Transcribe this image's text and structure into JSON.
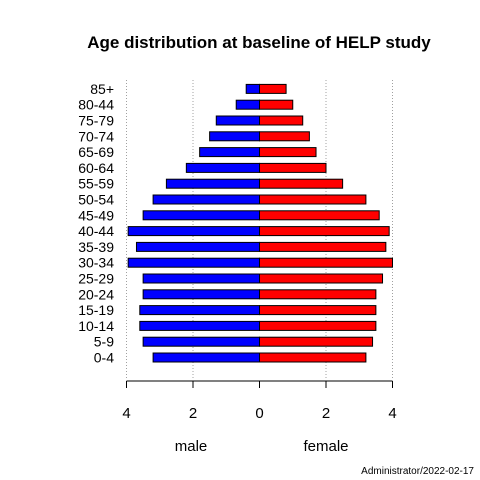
{
  "chart_data": {
    "type": "bar",
    "orientation": "horizontal",
    "layout": "population-pyramid",
    "title": "Age distribution at baseline of HELP study",
    "categories": [
      "0-4",
      "5-9",
      "10-14",
      "15-19",
      "20-24",
      "25-29",
      "30-34",
      "35-39",
      "40-44",
      "45-49",
      "50-54",
      "55-59",
      "60-64",
      "65-69",
      "70-74",
      "75-79",
      "80-44",
      "85+"
    ],
    "series": [
      {
        "name": "male",
        "side": "left",
        "color": "#0000ff",
        "values": [
          3.2,
          3.5,
          3.6,
          3.6,
          3.5,
          3.5,
          3.95,
          3.7,
          3.95,
          3.5,
          3.2,
          2.8,
          2.2,
          1.8,
          1.5,
          1.3,
          0.7,
          0.4
        ]
      },
      {
        "name": "female",
        "side": "right",
        "color": "#ff0000",
        "values": [
          3.2,
          3.4,
          3.5,
          3.5,
          3.5,
          3.7,
          4.0,
          3.8,
          3.9,
          3.6,
          3.2,
          2.5,
          2.0,
          1.7,
          1.5,
          1.3,
          1.0,
          0.8
        ]
      }
    ],
    "xlim": [
      -4,
      4
    ],
    "xticks": [
      -4,
      -2,
      0,
      2,
      4
    ],
    "xtick_labels": [
      "4",
      "2",
      "0",
      "2",
      "4"
    ],
    "grid": "vertical dotted",
    "left_label": "male",
    "right_label": "female",
    "footer": "Administrator/2022-02-17"
  }
}
